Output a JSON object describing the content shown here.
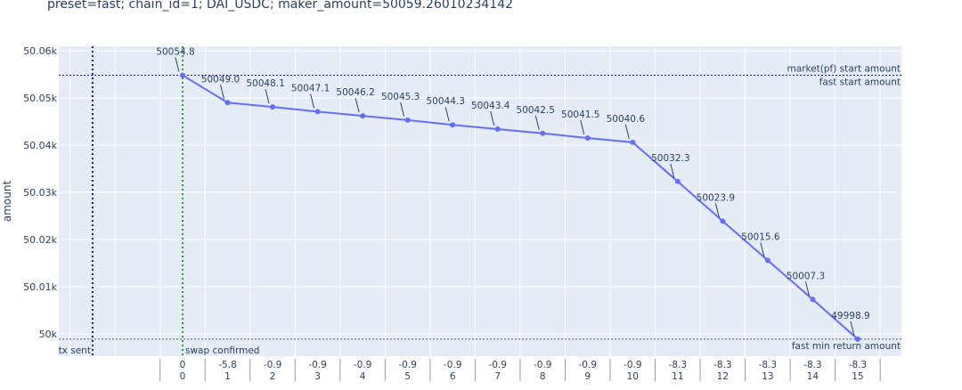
{
  "title": "preset=fast; chain_id=1; DAI_USDC; maker_amount=50059.26010234142",
  "chart_data": {
    "type": "line",
    "title": "preset=fast; chain_id=1; DAI_USDC; maker_amount=50059.26010234142",
    "ylabel": "amount",
    "ylim": [
      49995.3,
      50060.9
    ],
    "yticks": [
      50000,
      50010,
      50020,
      50030,
      50040,
      50050,
      50060
    ],
    "ytick_labels": [
      "50k",
      "50.01k",
      "50.02k",
      "50.03k",
      "50.04k",
      "50.05k",
      "50.06k"
    ],
    "x": [
      0,
      1,
      2,
      3,
      4,
      5,
      6,
      7,
      8,
      9,
      10,
      11,
      12,
      13,
      14,
      15
    ],
    "x_top_labels": [
      "0",
      "-5.8",
      "-0.9",
      "-0.9",
      "-0.9",
      "-0.9",
      "-0.9",
      "-0.9",
      "-0.9",
      "-0.9",
      "-0.9",
      "-8.3",
      "-8.3",
      "-8.3",
      "-8.3",
      "-8.3"
    ],
    "x_bottom_labels": [
      "0",
      "1",
      "2",
      "3",
      "4",
      "5",
      "6",
      "7",
      "8",
      "9",
      "10",
      "11",
      "12",
      "13",
      "14",
      "15"
    ],
    "values": [
      50054.8,
      50049.0,
      50048.1,
      50047.1,
      50046.2,
      50045.3,
      50044.3,
      50043.4,
      50042.5,
      50041.5,
      50040.6,
      50032.3,
      50023.9,
      50015.6,
      50007.3,
      49998.9
    ],
    "data_labels": [
      "50054.8",
      "50049.0",
      "50048.1",
      "50047.1",
      "50046.2",
      "50045.3",
      "50044.3",
      "50043.4",
      "50042.5",
      "50041.5",
      "50040.6",
      "50032.3",
      "50023.9",
      "50015.6",
      "50007.3",
      "49998.9"
    ],
    "hlines": [
      {
        "y": 50054.8,
        "label": "market(pf) start amount",
        "label2": "fast start amount"
      },
      {
        "y": 49998.9,
        "label": "fast min return amount"
      }
    ],
    "vlines": [
      {
        "x": -2,
        "label": "tx sent",
        "color": "#1f1f7a"
      },
      {
        "x": 0,
        "label": "swap confirmed",
        "color": "#2ca02c"
      }
    ],
    "line_color": "#636efa",
    "bg_color": "#e5ecf6",
    "grid": true
  }
}
